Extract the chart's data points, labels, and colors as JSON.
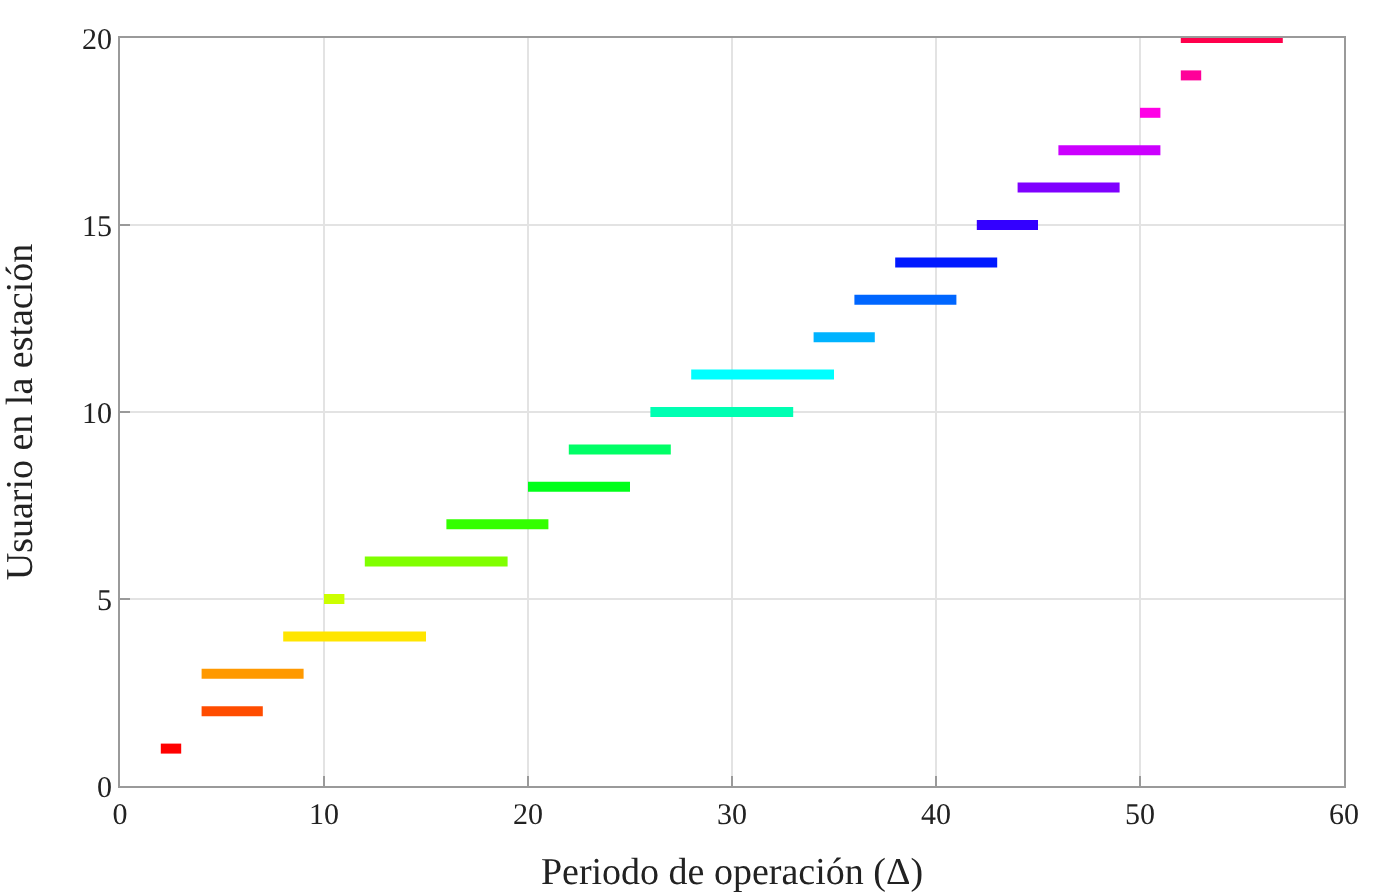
{
  "chart_data": {
    "type": "line",
    "xlabel": "Periodo de operación (Δ)",
    "ylabel": "Usuario en la estación",
    "xlim": [
      0,
      60
    ],
    "xticks": [
      0,
      10,
      20,
      30,
      40,
      50,
      60
    ],
    "ylim": [
      0,
      20
    ],
    "yticks": [
      0,
      5,
      10,
      15,
      20
    ],
    "grid": true,
    "series": [
      {
        "color": "#ff0000",
        "x": [
          2,
          3
        ],
        "values": [
          1,
          1
        ]
      },
      {
        "color": "#ff4c00",
        "x": [
          4,
          7
        ],
        "values": [
          2,
          2
        ]
      },
      {
        "color": "#ff9900",
        "x": [
          4,
          9
        ],
        "values": [
          3,
          3
        ]
      },
      {
        "color": "#ffe500",
        "x": [
          8,
          15
        ],
        "values": [
          4,
          4
        ]
      },
      {
        "color": "#ccff00",
        "x": [
          10,
          11
        ],
        "values": [
          5,
          5
        ]
      },
      {
        "color": "#80ff00",
        "x": [
          12,
          19
        ],
        "values": [
          6,
          6
        ]
      },
      {
        "color": "#33ff00",
        "x": [
          16,
          21
        ],
        "values": [
          7,
          7
        ]
      },
      {
        "color": "#00ff19",
        "x": [
          20,
          25
        ],
        "values": [
          8,
          8
        ]
      },
      {
        "color": "#00ff66",
        "x": [
          22,
          27
        ],
        "values": [
          9,
          9
        ]
      },
      {
        "color": "#00ffb2",
        "x": [
          26,
          33
        ],
        "values": [
          10,
          10
        ]
      },
      {
        "color": "#00ffff",
        "x": [
          28,
          35
        ],
        "values": [
          11,
          11
        ]
      },
      {
        "color": "#00b3ff",
        "x": [
          34,
          37
        ],
        "values": [
          12,
          12
        ]
      },
      {
        "color": "#0066ff",
        "x": [
          36,
          41
        ],
        "values": [
          13,
          13
        ]
      },
      {
        "color": "#0019ff",
        "x": [
          38,
          43
        ],
        "values": [
          14,
          14
        ]
      },
      {
        "color": "#3300ff",
        "x": [
          42,
          45
        ],
        "values": [
          15,
          15
        ]
      },
      {
        "color": "#7f00ff",
        "x": [
          44,
          49
        ],
        "values": [
          16,
          16
        ]
      },
      {
        "color": "#cc00ff",
        "x": [
          46,
          51
        ],
        "values": [
          17,
          17
        ]
      },
      {
        "color": "#ff00e6",
        "x": [
          50,
          51
        ],
        "values": [
          18,
          18
        ]
      },
      {
        "color": "#ff0099",
        "x": [
          52,
          53
        ],
        "values": [
          19,
          19
        ]
      },
      {
        "color": "#ff004c",
        "x": [
          52,
          57
        ],
        "values": [
          20,
          20
        ]
      }
    ]
  }
}
